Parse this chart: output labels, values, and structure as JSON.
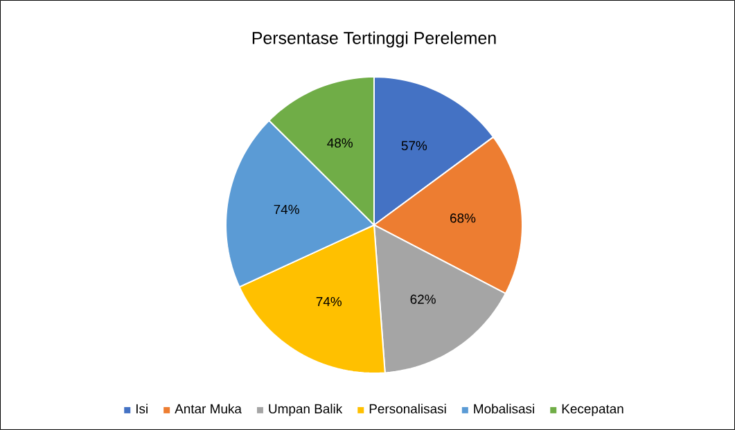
{
  "chart_data": {
    "type": "pie",
    "title": "Persentase Tertinggi Perelemen",
    "categories": [
      "Isi",
      "Antar Muka",
      "Umpan Balik",
      "Personalisasi",
      "Mobalisasi",
      "Kecepatan"
    ],
    "values": [
      57,
      68,
      62,
      74,
      74,
      48
    ],
    "value_labels": [
      "57%",
      "68%",
      "62%",
      "74%",
      "74%",
      "48%"
    ],
    "colors": [
      "#4472c4",
      "#ed7d31",
      "#a5a5a5",
      "#ffc000",
      "#5b9bd5",
      "#70ad47"
    ],
    "legend": "bottom"
  }
}
